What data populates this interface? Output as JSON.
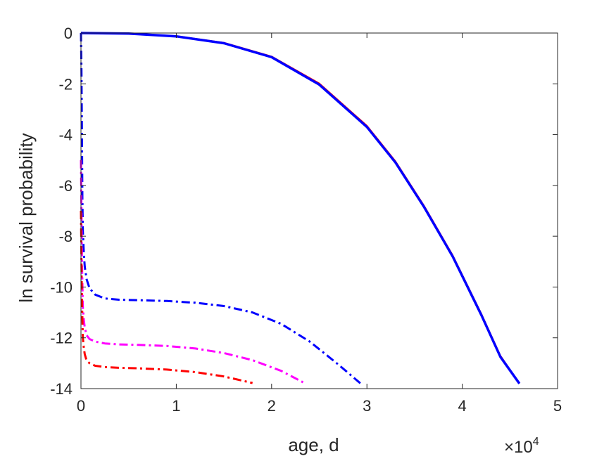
{
  "chart_data": {
    "type": "line",
    "title": "",
    "xlabel": "age, d",
    "ylabel": "ln survival probability",
    "x_multiplier_base": "×10",
    "x_multiplier_exponent": "4",
    "xlim": [
      0,
      50000
    ],
    "ylim": [
      -14,
      0
    ],
    "xticks": [
      0,
      10000,
      20000,
      30000,
      40000,
      50000
    ],
    "xtick_labels": [
      "0",
      "1",
      "2",
      "3",
      "4",
      "5"
    ],
    "yticks": [
      0,
      -2,
      -4,
      -6,
      -8,
      -10,
      -12,
      -14
    ],
    "ytick_labels": [
      "0",
      "-2",
      "-4",
      "-6",
      "-8",
      "-10",
      "-12",
      "-14"
    ],
    "grid": false,
    "legend": "none",
    "series": [
      {
        "color": "#ff0000",
        "style": "solid",
        "width": 2,
        "x": [
          0,
          5000,
          10000,
          15000,
          20000,
          25000,
          30000,
          33000,
          36000,
          39000,
          42000,
          44000,
          46000
        ],
        "y": [
          0,
          -0.02,
          -0.12,
          -0.38,
          -0.92,
          -1.98,
          -3.65,
          -5.05,
          -6.8,
          -8.75,
          -11.05,
          -12.7,
          -13.8
        ]
      },
      {
        "color": "#0000ff",
        "style": "solid",
        "width": 3.5,
        "x": [
          0,
          5000,
          10000,
          15000,
          20000,
          25000,
          30000,
          33000,
          36000,
          39000,
          42000,
          44000,
          46000
        ],
        "y": [
          0,
          -0.02,
          -0.13,
          -0.4,
          -0.95,
          -2.03,
          -3.7,
          -5.1,
          -6.85,
          -8.8,
          -11.1,
          -12.75,
          -13.8
        ]
      },
      {
        "color": "#0000ff",
        "style": "dashdot",
        "width": 3,
        "x": [
          0,
          50,
          100,
          150,
          200,
          300,
          400,
          600,
          900,
          1500,
          2500,
          4000,
          6000,
          9000,
          12000,
          15000,
          18000,
          21000,
          24000,
          27000,
          29500
        ],
        "y": [
          0,
          -1.5,
          -4,
          -6.5,
          -7.8,
          -8.7,
          -9.2,
          -9.7,
          -10.05,
          -10.3,
          -10.45,
          -10.5,
          -10.52,
          -10.55,
          -10.62,
          -10.75,
          -11,
          -11.45,
          -12.15,
          -13.05,
          -13.85
        ]
      },
      {
        "color": "#ff00ff",
        "style": "dashdot",
        "width": 3,
        "x": [
          0,
          50,
          100,
          200,
          300,
          400,
          600,
          900,
          1500,
          2500,
          4000,
          6000,
          9000,
          12000,
          15000,
          18000,
          21000,
          23300
        ],
        "y": [
          -5,
          -7,
          -9,
          -10.8,
          -11.3,
          -11.6,
          -11.9,
          -12.05,
          -12.15,
          -12.22,
          -12.26,
          -12.28,
          -12.32,
          -12.42,
          -12.6,
          -12.88,
          -13.3,
          -13.75
        ]
      },
      {
        "color": "#ff0000",
        "style": "dashdot",
        "width": 3,
        "x": [
          0,
          50,
          100,
          200,
          300,
          400,
          600,
          900,
          1500,
          2500,
          4000,
          6000,
          9000,
          12000,
          15000,
          18000
        ],
        "y": [
          -7,
          -9,
          -10.5,
          -12,
          -12.4,
          -12.65,
          -12.9,
          -13,
          -13.1,
          -13.15,
          -13.18,
          -13.2,
          -13.25,
          -13.35,
          -13.52,
          -13.78
        ]
      }
    ]
  }
}
